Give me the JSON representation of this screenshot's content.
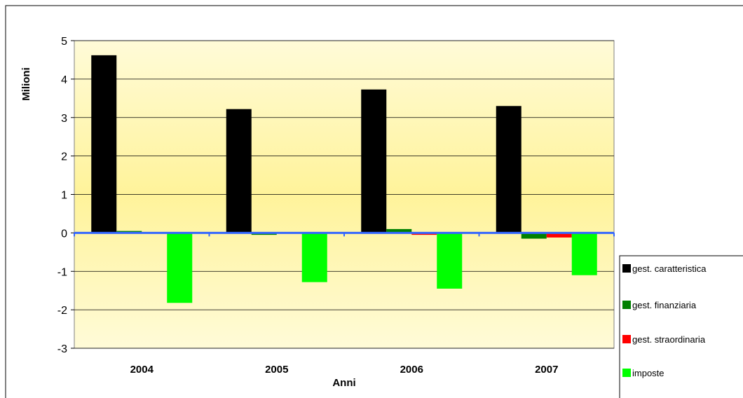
{
  "chart_data": {
    "type": "bar",
    "y_label": "Milioni",
    "x_label": "Anni",
    "categories": [
      "2004",
      "2005",
      "2006",
      "2007"
    ],
    "series": [
      {
        "name": "gest. caratteristica",
        "color": "#000000",
        "values": [
          4.62,
          3.22,
          3.73,
          3.3
        ]
      },
      {
        "name": "gest. finanziaria",
        "color": "#008000",
        "values": [
          0.05,
          -0.05,
          0.1,
          -0.15
        ]
      },
      {
        "name": "gest. straordinaria",
        "color": "#ff0000",
        "values": [
          0,
          0,
          -0.05,
          -0.12
        ]
      },
      {
        "name": "imposte",
        "color": "#00ff00",
        "values": [
          -1.82,
          -1.28,
          -1.45,
          -1.1
        ]
      }
    ],
    "ylim": [
      -3,
      5
    ],
    "yticks": [
      -3,
      -2,
      -1,
      0,
      1,
      2,
      3,
      4,
      5
    ],
    "grid": true,
    "legend": "right"
  }
}
